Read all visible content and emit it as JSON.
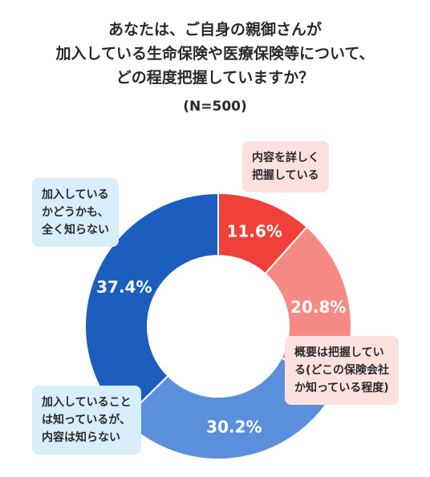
{
  "title_lines": [
    "あなたは、ご自身の親御さんが",
    "加入している生命保険や医療保険等について、",
    "どの程度把握していますか？"
  ],
  "subtitle": "(N=500)",
  "chart_data": {
    "type": "pie",
    "donut": true,
    "slices": [
      {
        "label": "内容を詳しく把握している",
        "value": 11.6,
        "display": "11.6%",
        "color": "#ef4138"
      },
      {
        "label": "概要は把握している(どこの保険会社か知っている程度)",
        "value": 20.8,
        "display": "20.8%",
        "color": "#f58a84"
      },
      {
        "label": "加入していることは知っているが、内容は知らない",
        "value": 30.2,
        "display": "30.2%",
        "color": "#5a8fdc"
      },
      {
        "label": "加入しているかどうかも、全く知らない",
        "value": 37.4,
        "display": "37.4%",
        "color": "#1b5ebe"
      }
    ]
  },
  "bubbles": [
    {
      "lines": [
        "内容を詳しく",
        "把握している"
      ],
      "tone": "pink"
    },
    {
      "lines": [
        "概要は把握してい",
        "る(どこの保険会社",
        "か知っている程度)"
      ],
      "tone": "pink"
    },
    {
      "lines": [
        "加入していること",
        "は知っているが、",
        "内容は知らない"
      ],
      "tone": "blue"
    },
    {
      "lines": [
        "加入している",
        "かどうかも、",
        "全く知らない"
      ],
      "tone": "blue"
    }
  ]
}
